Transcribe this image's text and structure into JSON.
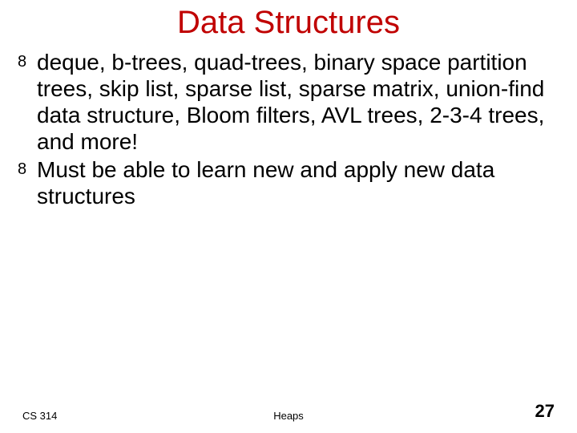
{
  "slide": {
    "title": "Data Structures",
    "title_color": "#c00000",
    "title_fontsize": 40,
    "body_fontsize": 28,
    "body_color": "#000000",
    "background_color": "#ffffff",
    "bullets": [
      "deque, b-trees, quad-trees, binary space partition trees, skip list, sparse list, sparse matrix, union-find data structure, Bloom filters, AVL trees, 2-3-4 trees, and more!",
      "Must be able to learn new and apply new data structures"
    ],
    "bullet_marker": "8"
  },
  "footer": {
    "left": "CS 314",
    "center": "Heaps",
    "page_number": "27",
    "left_fontsize": 13,
    "center_fontsize": 13,
    "page_fontsize": 22
  }
}
